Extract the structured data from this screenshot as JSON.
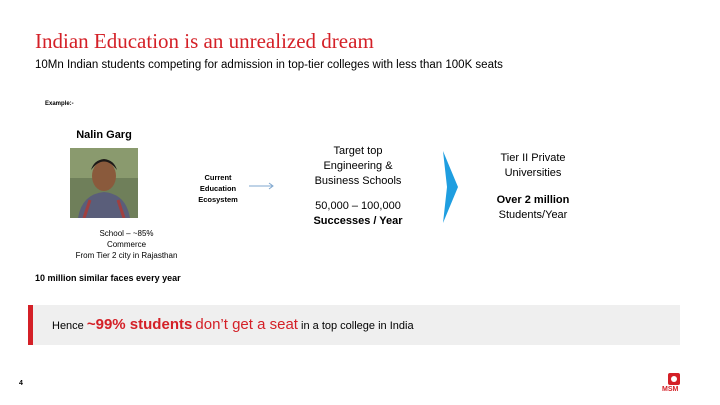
{
  "header": {
    "title": "Indian Education is an unrealized dream",
    "subtitle": "10Mn Indian students competing for admission in top-tier colleges with less than 100K seats"
  },
  "example": {
    "label": "Example:-",
    "name": "Nalin Garg",
    "details": [
      "School – ~85%",
      "Commerce",
      "From Tier 2 city in Rajasthan"
    ],
    "caption": "10 million similar faces every year"
  },
  "flow": {
    "ecosystem": [
      "Current",
      "Education",
      "Ecosystem"
    ],
    "target": {
      "lines": [
        "Target top",
        "Engineering &",
        "Business Schools"
      ],
      "range": "50,000 – 100,000",
      "rate": "Successes / Year"
    },
    "tier": {
      "lines": [
        "Tier II Private",
        "Universities"
      ],
      "count": "Over 2 million",
      "rate": "Students/Year"
    }
  },
  "banner": {
    "lead": "Hence",
    "highlight": "~99% students",
    "highlight_rest": "don’t get a seat",
    "tail": "in a top college in India"
  },
  "footer": {
    "page": "4",
    "logo": "MSM"
  }
}
